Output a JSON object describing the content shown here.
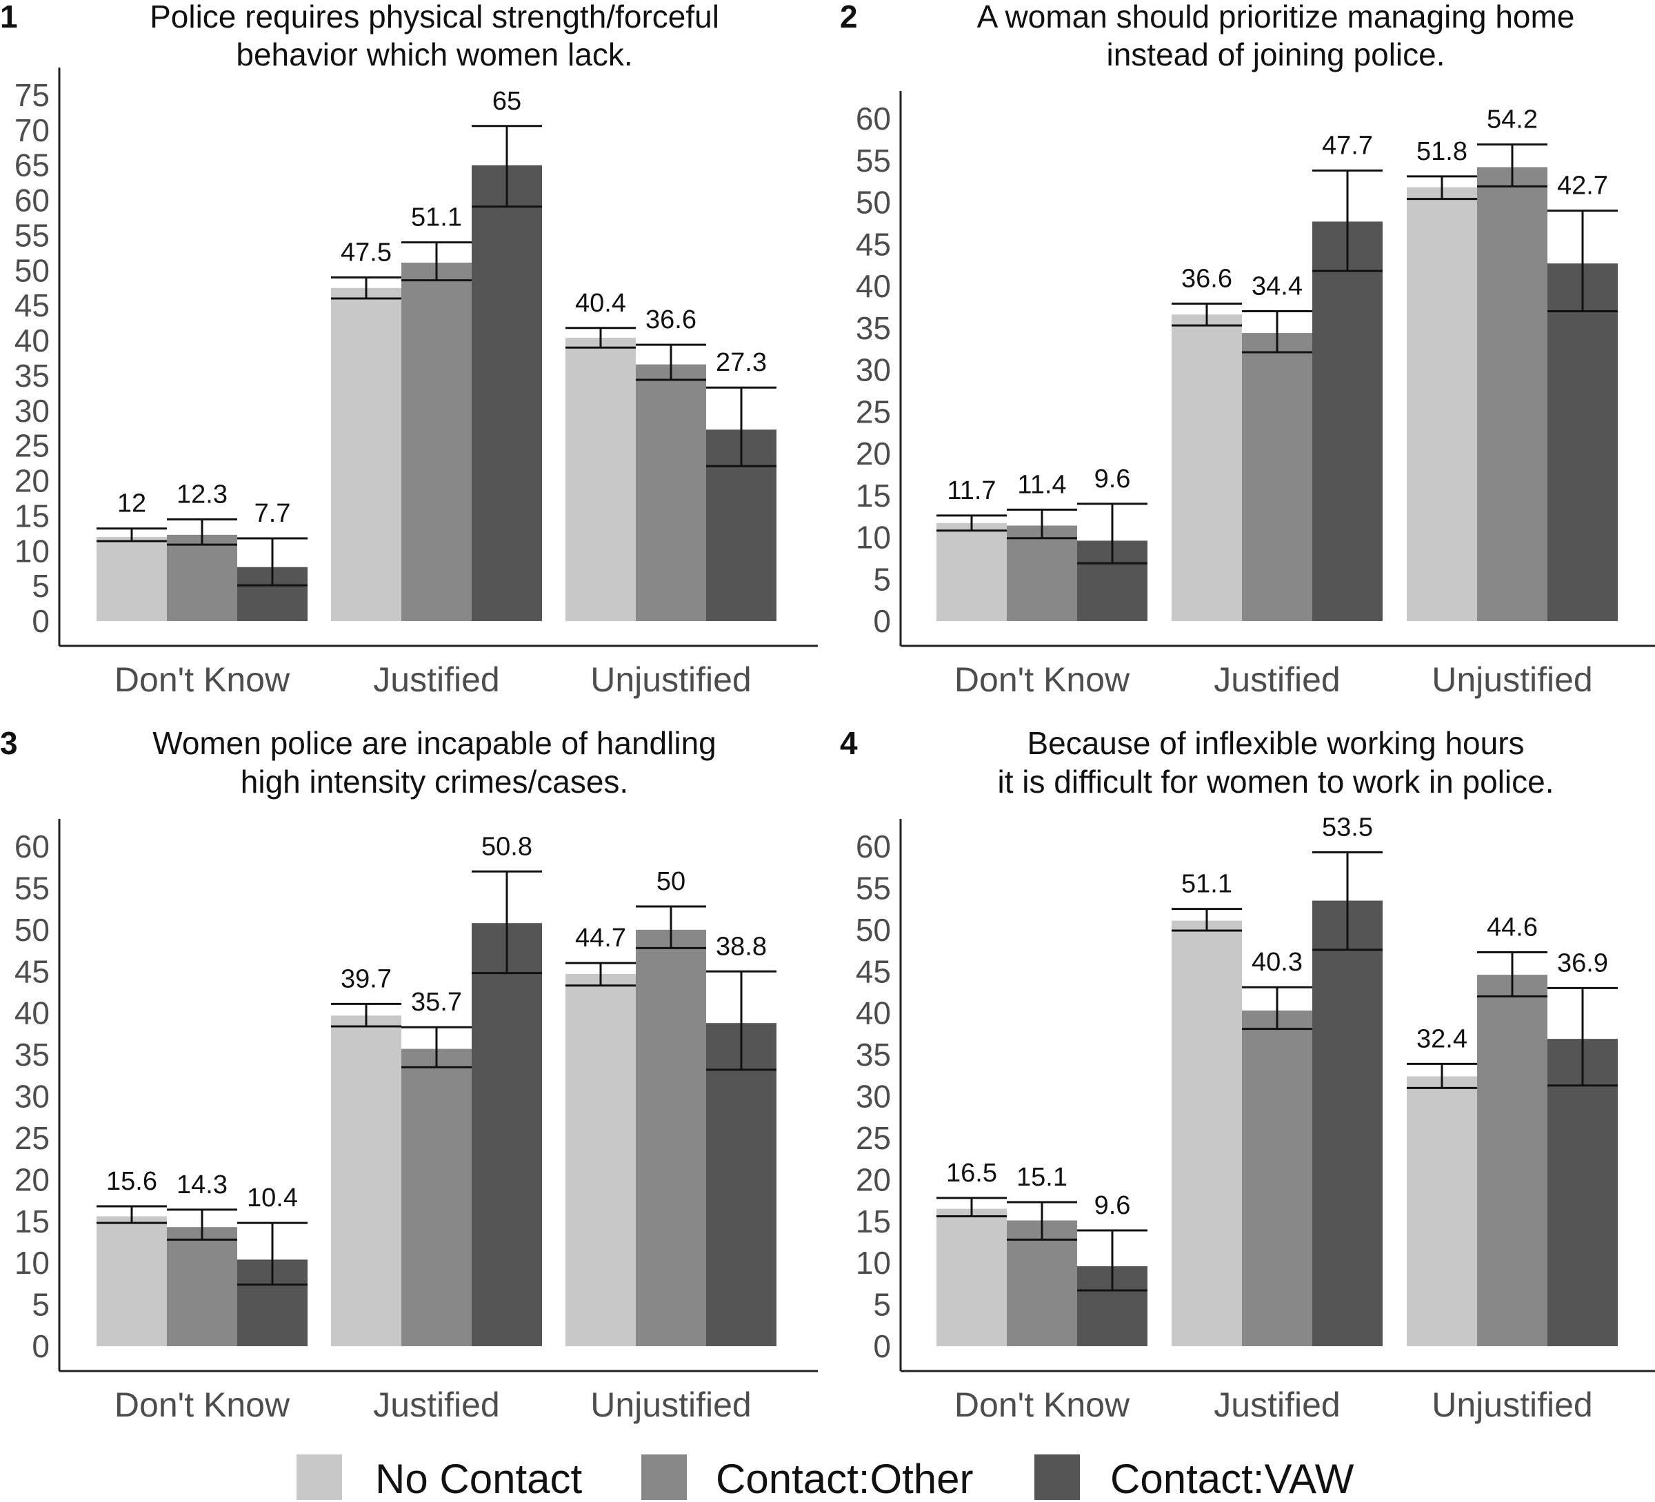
{
  "series_colors": {
    "No Contact": "#c8c8c8",
    "Contact:Other": "#888888",
    "Contact:VAW": "#555555"
  },
  "legend": [
    "No Contact",
    "Contact:Other",
    "Contact:VAW"
  ],
  "chart_data": [
    {
      "type": "bar",
      "panel": "1",
      "title": [
        "Police requires physical strength/forceful",
        "behavior which women lack."
      ],
      "categories": [
        "Don't Know",
        "Justified",
        "Unjustified"
      ],
      "ylim": [
        0,
        75
      ],
      "yticks": [
        0,
        5,
        10,
        15,
        20,
        25,
        30,
        35,
        40,
        45,
        50,
        55,
        60,
        65,
        70,
        75
      ],
      "series": [
        {
          "name": "No Contact",
          "values": [
            12,
            47.5,
            40.4
          ],
          "err_low": [
            11.4,
            46.0,
            39.0
          ],
          "err_high": [
            13.2,
            49.0,
            41.8
          ]
        },
        {
          "name": "Contact:Other",
          "values": [
            12.3,
            51.1,
            36.6
          ],
          "err_low": [
            10.9,
            48.6,
            34.4
          ],
          "err_high": [
            14.5,
            54.0,
            39.4
          ]
        },
        {
          "name": "Contact:VAW",
          "values": [
            7.7,
            65,
            27.3
          ],
          "err_low": [
            5.1,
            59.1,
            22.1
          ],
          "err_high": [
            11.8,
            70.6,
            33.3
          ]
        }
      ],
      "labels": [
        [
          "12",
          "47.5",
          "40.4"
        ],
        [
          "12.3",
          "51.1",
          "36.6"
        ],
        [
          "7.7",
          "65",
          "27.3"
        ]
      ]
    },
    {
      "type": "bar",
      "panel": "2",
      "title": [
        "A woman should prioritize managing home",
        "instead of joining police."
      ],
      "categories": [
        "Don't Know",
        "Justified",
        "Unjustified"
      ],
      "ylim": [
        0,
        60
      ],
      "yticks": [
        0,
        5,
        10,
        15,
        20,
        25,
        30,
        35,
        40,
        45,
        50,
        55,
        60
      ],
      "series": [
        {
          "name": "No Contact",
          "values": [
            11.7,
            36.6,
            51.8
          ],
          "err_low": [
            10.8,
            35.3,
            50.4
          ],
          "err_high": [
            12.6,
            37.9,
            53.1
          ]
        },
        {
          "name": "Contact:Other",
          "values": [
            11.4,
            34.4,
            54.2
          ],
          "err_low": [
            9.9,
            32.1,
            51.9
          ],
          "err_high": [
            13.3,
            37.0,
            56.9
          ]
        },
        {
          "name": "Contact:VAW",
          "values": [
            9.6,
            47.7,
            42.7
          ],
          "err_low": [
            6.9,
            41.8,
            37.0
          ],
          "err_high": [
            14.0,
            53.8,
            49.0
          ]
        }
      ],
      "labels": [
        [
          "11.7",
          "36.6",
          "51.8"
        ],
        [
          "11.4",
          "34.4",
          "54.2"
        ],
        [
          "9.6",
          "47.7",
          "42.7"
        ]
      ]
    },
    {
      "type": "bar",
      "panel": "3",
      "title": [
        "Women police are incapable of handling",
        "high intensity crimes/cases."
      ],
      "categories": [
        "Don't Know",
        "Justified",
        "Unjustified"
      ],
      "ylim": [
        0,
        60
      ],
      "yticks": [
        0,
        5,
        10,
        15,
        20,
        25,
        30,
        35,
        40,
        45,
        50,
        55,
        60
      ],
      "series": [
        {
          "name": "No Contact",
          "values": [
            15.6,
            39.7,
            44.7
          ],
          "err_low": [
            14.8,
            38.4,
            43.3
          ],
          "err_high": [
            16.8,
            41.1,
            46.0
          ]
        },
        {
          "name": "Contact:Other",
          "values": [
            14.3,
            35.7,
            50
          ],
          "err_low": [
            12.8,
            33.5,
            47.8
          ],
          "err_high": [
            16.4,
            38.3,
            52.8
          ]
        },
        {
          "name": "Contact:VAW",
          "values": [
            10.4,
            50.8,
            38.8
          ],
          "err_low": [
            7.4,
            44.8,
            33.2
          ],
          "err_high": [
            14.8,
            57.0,
            45.0
          ]
        }
      ],
      "labels": [
        [
          "15.6",
          "39.7",
          "44.7"
        ],
        [
          "14.3",
          "35.7",
          "50"
        ],
        [
          "10.4",
          "50.8",
          "38.8"
        ]
      ]
    },
    {
      "type": "bar",
      "panel": "4",
      "title": [
        "Because of inflexible working hours",
        "it is difficult for women to work in police."
      ],
      "categories": [
        "Don't Know",
        "Justified",
        "Unjustified"
      ],
      "ylim": [
        0,
        60
      ],
      "yticks": [
        0,
        5,
        10,
        15,
        20,
        25,
        30,
        35,
        40,
        45,
        50,
        55,
        60
      ],
      "series": [
        {
          "name": "No Contact",
          "values": [
            16.5,
            51.1,
            32.4
          ],
          "err_low": [
            15.6,
            49.9,
            31.0
          ],
          "err_high": [
            17.8,
            52.5,
            33.9
          ]
        },
        {
          "name": "Contact:Other",
          "values": [
            15.1,
            40.3,
            44.6
          ],
          "err_low": [
            12.8,
            38.1,
            42.0
          ],
          "err_high": [
            17.3,
            43.1,
            47.3
          ]
        },
        {
          "name": "Contact:VAW",
          "values": [
            9.6,
            53.5,
            36.9
          ],
          "err_low": [
            6.7,
            47.6,
            31.3
          ],
          "err_high": [
            13.9,
            59.3,
            43.0
          ]
        }
      ],
      "labels": [
        [
          "16.5",
          "51.1",
          "32.4"
        ],
        [
          "15.1",
          "40.3",
          "44.6"
        ],
        [
          "9.6",
          "53.5",
          "36.9"
        ]
      ]
    }
  ]
}
